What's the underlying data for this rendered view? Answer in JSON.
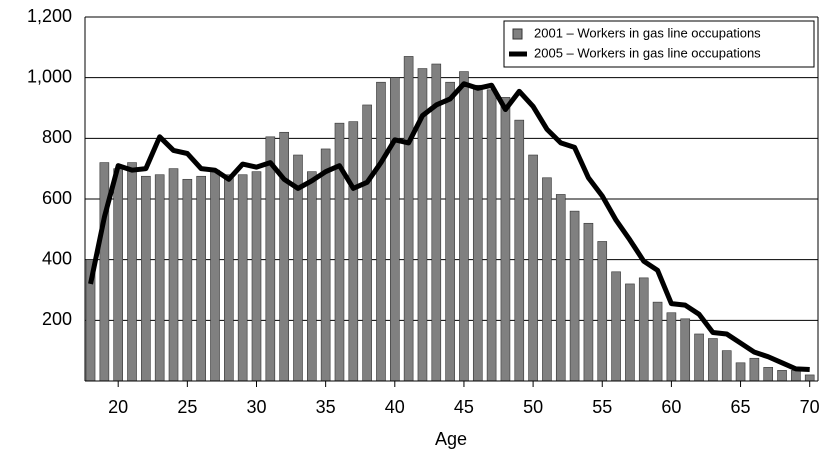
{
  "chart_data": {
    "type": "bar",
    "x_label": "Age",
    "x": [
      18,
      19,
      20,
      21,
      22,
      23,
      24,
      25,
      26,
      27,
      28,
      29,
      30,
      31,
      32,
      33,
      34,
      35,
      36,
      37,
      38,
      39,
      40,
      41,
      42,
      43,
      44,
      45,
      46,
      47,
      48,
      49,
      50,
      51,
      52,
      53,
      54,
      55,
      56,
      57,
      58,
      59,
      60,
      61,
      62,
      63,
      64,
      65,
      66,
      67,
      68,
      69,
      70
    ],
    "series": [
      {
        "name": "2001 – Workers in gas line occupations",
        "type": "bar",
        "color": "#808080",
        "values": [
          400,
          720,
          700,
          720,
          675,
          680,
          700,
          665,
          675,
          695,
          680,
          680,
          690,
          805,
          820,
          745,
          690,
          765,
          850,
          855,
          910,
          985,
          1000,
          1070,
          1030,
          1045,
          985,
          1020,
          975,
          960,
          935,
          860,
          745,
          670,
          615,
          560,
          520,
          460,
          360,
          320,
          340,
          260,
          225,
          205,
          155,
          140,
          100,
          60,
          75,
          45,
          35,
          35,
          20
        ]
      },
      {
        "name": "2005 – Workers in gas line occupations",
        "type": "line",
        "color": "#000000",
        "values": [
          320,
          540,
          710,
          695,
          700,
          805,
          760,
          750,
          700,
          695,
          665,
          715,
          705,
          720,
          665,
          635,
          660,
          690,
          710,
          635,
          655,
          720,
          795,
          785,
          875,
          910,
          930,
          980,
          965,
          975,
          895,
          955,
          905,
          830,
          785,
          770,
          670,
          610,
          530,
          465,
          395,
          365,
          255,
          250,
          220,
          160,
          155,
          125,
          95,
          80,
          60,
          40,
          38
        ]
      }
    ],
    "xlim": [
      17.6,
      70.6
    ],
    "xticks": [
      20,
      25,
      30,
      35,
      40,
      45,
      50,
      55,
      60,
      65,
      70
    ],
    "ylim": [
      0,
      1200
    ],
    "yticks": [
      200,
      400,
      600,
      800,
      {
        "value": 1000,
        "label": "1,000"
      },
      {
        "value": 1200,
        "label": "1,200"
      }
    ],
    "grid": true,
    "legend": "upper right"
  }
}
